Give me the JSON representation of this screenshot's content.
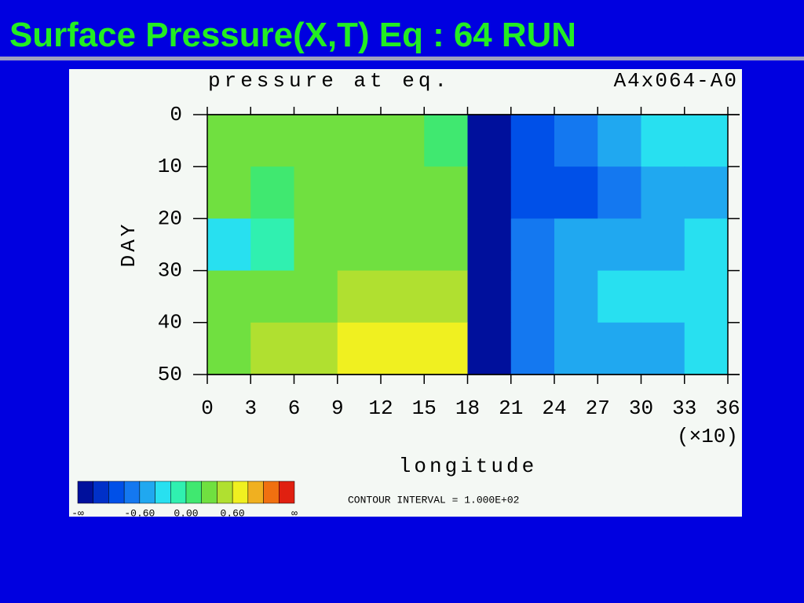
{
  "slide": {
    "title": "Surface Pressure(X,T) Eq  : 64 RUN"
  },
  "chart_data": {
    "type": "heatmap",
    "title": "pressure at eq.",
    "subtitle": "A4x064-A0",
    "x_label": "longitude",
    "x_multiplier": "(×10)",
    "y_label": "DAY",
    "note": "CONTOUR INTERVAL = 1.000E+02",
    "x": [
      1.5,
      4.5,
      7.5,
      10.5,
      13.5,
      16.5,
      19.5,
      22.5,
      25.5,
      28.5,
      31.5,
      34.5
    ],
    "y": [
      5,
      15,
      25,
      35,
      45
    ],
    "z": [
      [
        0.2,
        0.2,
        0.2,
        0.2,
        0.2,
        0.0,
        -1.3,
        -0.9,
        -0.7,
        -0.5,
        -0.3,
        -0.3
      ],
      [
        0.2,
        0.0,
        0.2,
        0.2,
        0.2,
        0.2,
        -1.3,
        -0.9,
        -0.9,
        -0.7,
        -0.6,
        -0.5
      ],
      [
        -0.3,
        -0.2,
        0.2,
        0.2,
        0.2,
        0.2,
        -1.3,
        -0.7,
        -0.5,
        -0.5,
        -0.5,
        -0.4
      ],
      [
        0.2,
        0.2,
        0.2,
        0.4,
        0.4,
        0.4,
        -1.3,
        -0.7,
        -0.5,
        -0.4,
        -0.3,
        -0.3
      ],
      [
        0.2,
        0.4,
        0.4,
        0.6,
        0.6,
        0.6,
        -1.3,
        -0.7,
        -0.5,
        -0.5,
        -0.5,
        -0.4
      ]
    ],
    "xlim": [
      0,
      36
    ],
    "xticks": [
      0,
      3,
      6,
      9,
      12,
      15,
      18,
      21,
      24,
      27,
      30,
      33,
      36
    ],
    "ylim": [
      0,
      50
    ],
    "y_inverted": true,
    "yticks": [
      0,
      10,
      20,
      30,
      40,
      50
    ],
    "colorbar": {
      "colors": [
        "#00109c",
        "#0030c8",
        "#0050e8",
        "#1478f0",
        "#20a8f0",
        "#28e0f0",
        "#30f0b0",
        "#40e870",
        "#70e040",
        "#b0e030",
        "#f0f020",
        "#f0b020",
        "#f07010",
        "#e02010"
      ],
      "bounds": [
        -1.2,
        -1.0,
        -0.8,
        -0.6,
        -0.4,
        -0.2,
        0,
        0.2,
        0.4,
        0.6,
        0.8,
        1.0,
        1.2
      ],
      "ticks": [
        {
          "value": -0.6,
          "label": "-0.60"
        },
        {
          "value": 0,
          "label": "0.00"
        },
        {
          "value": 0.6,
          "label": "0.60"
        }
      ],
      "end_labels": [
        "-∞",
        "∞"
      ]
    }
  }
}
